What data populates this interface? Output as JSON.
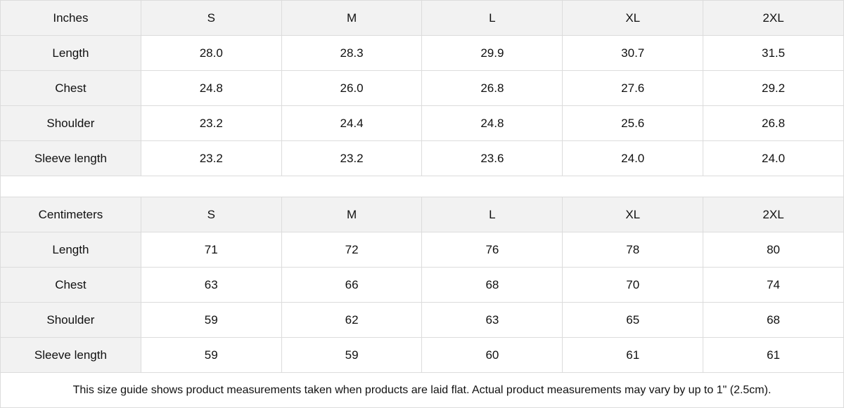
{
  "inches": {
    "header": [
      "Inches",
      "S",
      "M",
      "L",
      "XL",
      "2XL"
    ],
    "rows": [
      [
        "Length",
        "28.0",
        "28.3",
        "29.9",
        "30.7",
        "31.5"
      ],
      [
        "Chest",
        "24.8",
        "26.0",
        "26.8",
        "27.6",
        "29.2"
      ],
      [
        "Shoulder",
        "23.2",
        "24.4",
        "24.8",
        "25.6",
        "26.8"
      ],
      [
        "Sleeve length",
        "23.2",
        "23.2",
        "23.6",
        "24.0",
        "24.0"
      ]
    ]
  },
  "centimeters": {
    "header": [
      "Centimeters",
      "S",
      "M",
      "L",
      "XL",
      "2XL"
    ],
    "rows": [
      [
        "Length",
        "71",
        "72",
        "76",
        "78",
        "80"
      ],
      [
        "Chest",
        "63",
        "66",
        "68",
        "70",
        "74"
      ],
      [
        "Shoulder",
        "59",
        "62",
        "63",
        "65",
        "68"
      ],
      [
        "Sleeve length",
        "59",
        "59",
        "60",
        "61",
        "61"
      ]
    ]
  },
  "footnote": "This size guide shows product measurements taken when products are laid flat.  Actual product measurements may vary by up to 1\" (2.5cm)."
}
